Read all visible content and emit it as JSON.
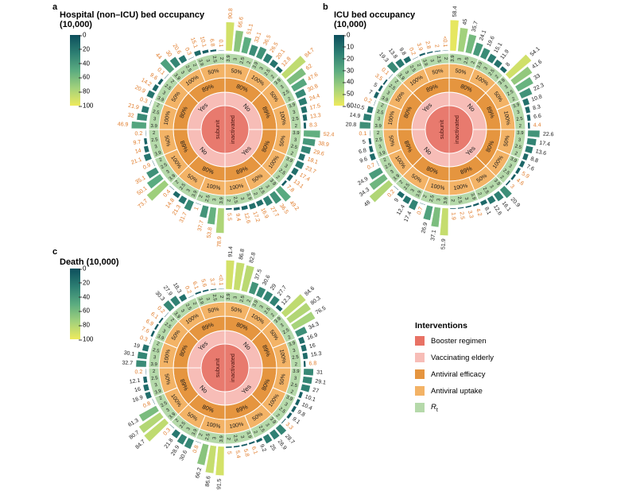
{
  "figure": {
    "panel_letters": [
      "a",
      "b",
      "c"
    ]
  },
  "rings": {
    "booster": [
      "subunit",
      "inactivated"
    ],
    "elderly": [
      "Yes",
      "No"
    ],
    "efficacy": [
      "80%",
      "89%"
    ],
    "uptake": [
      "50%",
      "100%"
    ],
    "rt": [
      "3.9",
      "3",
      "2.5",
      "2"
    ]
  },
  "colors": {
    "booster": "#e87a6e",
    "elderly": "#f7bdb7",
    "efficacy": "#e5953f",
    "uptake": "#f3b366",
    "rt_ring": "#b5d9aa",
    "label_orange": "#e07b29",
    "label_black": "#1a1a1a",
    "gradient": [
      "#0c4f5c",
      "#2c7d72",
      "#5aab80",
      "#a2d17c",
      "#eeea5d"
    ]
  },
  "legend": {
    "title": "Interventions",
    "items": [
      {
        "label": "Booster regimen",
        "color": "#e87265"
      },
      {
        "label": "Vaccinating elderly",
        "color": "#f7bdb7"
      },
      {
        "label": "Antiviral efficacy",
        "color": "#e5953f"
      },
      {
        "label": "Antiviral uptake",
        "color": "#f3b366"
      },
      {
        "label": "R",
        "sub": "t",
        "italic": true,
        "color": "#b5d9aa"
      }
    ]
  },
  "chart_data": [
    {
      "type": "radial-bar",
      "panel": "a",
      "title": "Hospital (non–ICU) bed occupancy",
      "subtitle": "(10,000)",
      "colorbar": {
        "ticks": [
          0,
          20,
          40,
          60,
          80,
          100
        ],
        "max": 100
      },
      "values": [
        "90.8",
        "66.6",
        "51.1",
        "33.1",
        "36.5",
        "26.5",
        "20.1",
        "12.8",
        "84.7",
        "62",
        "47.6",
        "30.8",
        "24.4",
        "17.5",
        "13.3",
        "8.3",
        "52.4",
        "38.9",
        "29.6",
        "18.1",
        "23.7",
        "17.4",
        "13.1",
        "7.8",
        "49.2",
        "36.5",
        "27.7",
        "16.9",
        "17.2",
        "12.6",
        "9.4",
        "5.5",
        "78.9",
        "53.8",
        "37.7",
        "1",
        "31.7",
        "21.3",
        "14.8",
        "0.4",
        "73.7",
        "50.1",
        "35.1",
        "0.9",
        "21.1",
        "14",
        "9.7",
        "0.2",
        "46.9",
        "32",
        "21.9",
        "0.3",
        "20.9",
        "14.2",
        "9.6",
        "0.1",
        "44",
        "30",
        "20.6",
        "0.3",
        "15.1",
        "10.1",
        "6.8",
        "0.1"
      ],
      "highlight": "all"
    },
    {
      "type": "radial-bar",
      "panel": "b",
      "title": "ICU bed occupancy",
      "subtitle": "(10,000)",
      "colorbar": {
        "ticks": [
          0,
          10,
          20,
          30,
          40,
          50,
          60
        ],
        "max": 60
      },
      "values": [
        "58.4",
        "45",
        "35.7",
        "24.1",
        "19.6",
        "15.1",
        "11.9",
        "8",
        "54.1",
        "41.6",
        "33",
        "22.3",
        "10.8",
        "8.3",
        "6.6",
        "4.4",
        "22.6",
        "17.4",
        "13.6",
        "8.8",
        "7.6",
        "5.9",
        "4.6",
        "3",
        "20.9",
        "16.1",
        "12.6",
        "8.1",
        "4.2",
        "3.3",
        "2.5",
        "1.9",
        "51.9",
        "37.1",
        "26.9",
        "0.7",
        "17.4",
        "12.4",
        "9",
        "0.2",
        "48",
        "34.3",
        "24.9",
        "0.7",
        "9.6",
        "6.8",
        "5",
        "0.1",
        "20.8",
        "14.9",
        "10.5",
        "0.2",
        "7",
        "5",
        "3.5",
        "0.1",
        "19.3",
        "13.8",
        "9.8",
        "0.2",
        "3.9",
        "2.8",
        "2",
        "<0.1"
      ],
      "highlight": [
        0,
        0,
        0,
        0,
        0,
        0,
        0,
        0,
        0,
        0,
        0,
        0,
        0,
        0,
        0,
        1,
        0,
        0,
        0,
        0,
        0,
        1,
        1,
        1,
        0,
        0,
        0,
        0,
        1,
        1,
        1,
        1,
        0,
        0,
        0,
        1,
        0,
        0,
        0,
        1,
        0,
        0,
        0,
        1,
        0,
        0,
        0,
        1,
        0,
        0,
        0,
        1,
        0,
        0,
        1,
        1,
        0,
        0,
        0,
        1,
        1,
        1,
        1,
        1
      ]
    },
    {
      "type": "radial-bar",
      "panel": "c",
      "title": "Death (10,000)",
      "subtitle": "",
      "colorbar": {
        "ticks": [
          0,
          20,
          40,
          60,
          80,
          100
        ],
        "max": 100
      },
      "values": [
        "91.4",
        "86.8",
        "82.8",
        "37.5",
        "30.6",
        "29",
        "27.7",
        "12.3",
        "84.6",
        "80.3",
        "76.5",
        "34.3",
        "16.9",
        "16",
        "15.3",
        "6.8",
        "31",
        "29.1",
        "27",
        "10.1",
        "10.4",
        "9.8",
        "9.1",
        "3.3",
        "28.7",
        "26.9",
        "25",
        "9.2",
        "6.1",
        "5.8",
        "5.4",
        "5",
        "91.5",
        "86.6",
        "66.2",
        "0.8",
        "30.6",
        "28.9",
        "21.8",
        "0.3",
        "84.7",
        "80.7",
        "61.3",
        "0.8",
        "16.9",
        "16",
        "12.1",
        "0.2",
        "32.7",
        "30.1",
        "19",
        "0.3",
        "7.6",
        "6.9",
        "6.1",
        "0.2",
        "30.3",
        "27.9",
        "18.3",
        "0.2",
        "6.1",
        "5.6",
        "3.7",
        "<0.1"
      ],
      "highlight": [
        0,
        0,
        0,
        0,
        0,
        0,
        0,
        0,
        0,
        0,
        0,
        0,
        0,
        0,
        0,
        1,
        0,
        0,
        0,
        0,
        0,
        0,
        0,
        1,
        0,
        0,
        0,
        0,
        1,
        1,
        1,
        1,
        0,
        0,
        0,
        1,
        0,
        0,
        0,
        1,
        0,
        0,
        0,
        1,
        0,
        0,
        0,
        1,
        0,
        0,
        0,
        1,
        1,
        1,
        1,
        1,
        0,
        0,
        0,
        1,
        1,
        1,
        1,
        1
      ]
    }
  ]
}
